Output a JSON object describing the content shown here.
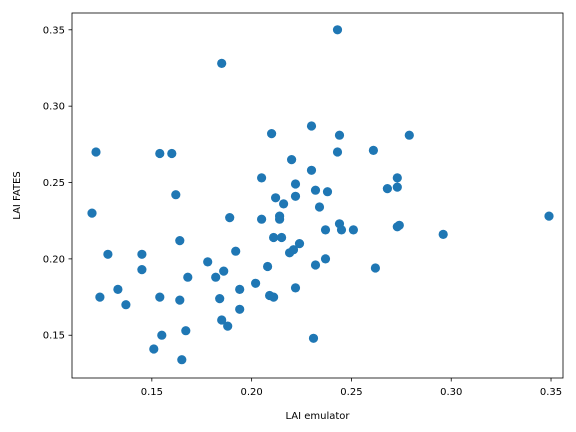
{
  "chart_data": {
    "type": "scatter",
    "title": "",
    "xlabel": "LAI emulator",
    "ylabel": "LAI FATES",
    "xlim": [
      0.11,
      0.356
    ],
    "ylim": [
      0.122,
      0.361
    ],
    "xticks": [
      0.15,
      0.2,
      0.25,
      0.3,
      0.35
    ],
    "xtick_labels": [
      "0.15",
      "0.20",
      "0.25",
      "0.30",
      "0.35"
    ],
    "yticks": [
      0.15,
      0.2,
      0.25,
      0.3,
      0.35
    ],
    "ytick_labels": [
      "0.15",
      "0.20",
      "0.25",
      "0.30",
      "0.35"
    ],
    "grid": false,
    "color": "#1f77b4",
    "series": [
      {
        "points": [
          [
            0.12,
            0.23
          ],
          [
            0.122,
            0.27
          ],
          [
            0.124,
            0.175
          ],
          [
            0.128,
            0.203
          ],
          [
            0.133,
            0.18
          ],
          [
            0.137,
            0.17
          ],
          [
            0.145,
            0.203
          ],
          [
            0.145,
            0.193
          ],
          [
            0.151,
            0.141
          ],
          [
            0.154,
            0.269
          ],
          [
            0.154,
            0.175
          ],
          [
            0.155,
            0.15
          ],
          [
            0.16,
            0.269
          ],
          [
            0.162,
            0.242
          ],
          [
            0.164,
            0.212
          ],
          [
            0.164,
            0.173
          ],
          [
            0.165,
            0.134
          ],
          [
            0.167,
            0.153
          ],
          [
            0.168,
            0.188
          ],
          [
            0.178,
            0.198
          ],
          [
            0.182,
            0.188
          ],
          [
            0.184,
            0.174
          ],
          [
            0.185,
            0.328
          ],
          [
            0.185,
            0.16
          ],
          [
            0.186,
            0.192
          ],
          [
            0.188,
            0.156
          ],
          [
            0.189,
            0.227
          ],
          [
            0.192,
            0.205
          ],
          [
            0.194,
            0.167
          ],
          [
            0.194,
            0.18
          ],
          [
            0.202,
            0.184
          ],
          [
            0.205,
            0.253
          ],
          [
            0.205,
            0.226
          ],
          [
            0.208,
            0.195
          ],
          [
            0.209,
            0.176
          ],
          [
            0.21,
            0.282
          ],
          [
            0.211,
            0.214
          ],
          [
            0.211,
            0.175
          ],
          [
            0.212,
            0.24
          ],
          [
            0.214,
            0.226
          ],
          [
            0.214,
            0.228
          ],
          [
            0.215,
            0.214
          ],
          [
            0.216,
            0.236
          ],
          [
            0.219,
            0.204
          ],
          [
            0.22,
            0.265
          ],
          [
            0.221,
            0.206
          ],
          [
            0.222,
            0.181
          ],
          [
            0.222,
            0.249
          ],
          [
            0.222,
            0.241
          ],
          [
            0.224,
            0.21
          ],
          [
            0.23,
            0.287
          ],
          [
            0.23,
            0.258
          ],
          [
            0.231,
            0.148
          ],
          [
            0.232,
            0.245
          ],
          [
            0.232,
            0.196
          ],
          [
            0.234,
            0.234
          ],
          [
            0.237,
            0.219
          ],
          [
            0.237,
            0.2
          ],
          [
            0.238,
            0.244
          ],
          [
            0.243,
            0.35
          ],
          [
            0.243,
            0.27
          ],
          [
            0.244,
            0.281
          ],
          [
            0.244,
            0.223
          ],
          [
            0.245,
            0.219
          ],
          [
            0.251,
            0.219
          ],
          [
            0.261,
            0.271
          ],
          [
            0.262,
            0.194
          ],
          [
            0.268,
            0.246
          ],
          [
            0.273,
            0.253
          ],
          [
            0.273,
            0.247
          ],
          [
            0.273,
            0.221
          ],
          [
            0.274,
            0.222
          ],
          [
            0.279,
            0.281
          ],
          [
            0.296,
            0.216
          ],
          [
            0.349,
            0.228
          ]
        ]
      }
    ]
  }
}
